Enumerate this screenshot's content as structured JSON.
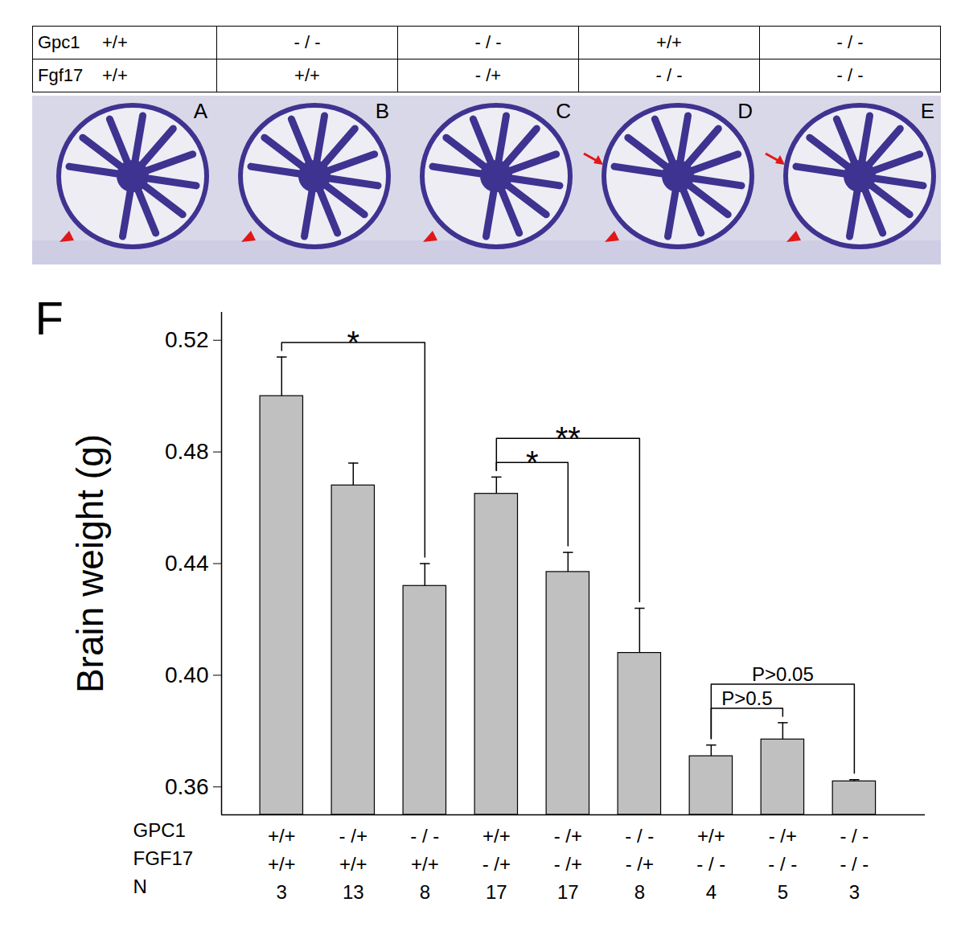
{
  "figure_panels": {
    "genotype_rows": [
      "Gpc1",
      "Fgf17"
    ],
    "panels": [
      {
        "label": "A",
        "genotypes": [
          "+/+",
          "+/+"
        ],
        "markers": [
          "arrowhead"
        ]
      },
      {
        "label": "B",
        "genotypes": [
          "- / -",
          "+/+"
        ],
        "markers": [
          "arrowhead"
        ]
      },
      {
        "label": "C",
        "genotypes": [
          "- / -",
          "- /+"
        ],
        "markers": [
          "arrowhead"
        ]
      },
      {
        "label": "D",
        "genotypes": [
          "+/+",
          "- / -"
        ],
        "markers": [
          "arrowhead",
          "arrow"
        ]
      },
      {
        "label": "E",
        "genotypes": [
          "- / -",
          "- / -"
        ],
        "markers": [
          "arrowhead",
          "arrow"
        ]
      }
    ]
  },
  "chart_data": {
    "type": "bar",
    "title": "F",
    "y_label": "Brain weight (g)",
    "row_labels": [
      "GPC1",
      "FGF17",
      "N"
    ],
    "categories": [
      [
        "+/+",
        "+/+",
        3
      ],
      [
        "- /+",
        "+/+",
        13
      ],
      [
        "- / -",
        "+/+",
        8
      ],
      [
        "+/+",
        "- /+",
        17
      ],
      [
        "- /+",
        "- /+",
        17
      ],
      [
        "- / -",
        "- /+",
        8
      ],
      [
        "+/+",
        "- / -",
        4
      ],
      [
        "- /+",
        "- / -",
        5
      ],
      [
        "- / -",
        "- / -",
        3
      ]
    ],
    "values": [
      0.5,
      0.468,
      0.432,
      0.465,
      0.437,
      0.408,
      0.371,
      0.377,
      0.362
    ],
    "error": [
      0.014,
      0.008,
      0.008,
      0.006,
      0.007,
      0.016,
      0.004,
      0.006,
      0.0006
    ],
    "color": "#c0c0c0",
    "ylim": [
      0.35,
      0.53
    ],
    "yticks": [
      0.36,
      {
        "value": 0.4,
        "label": "0.40"
      },
      0.44,
      0.48,
      0.52
    ],
    "annotations": [
      {
        "from": 0,
        "to": 2,
        "text": "*"
      },
      {
        "from": 3,
        "to": 4,
        "text": "*"
      },
      {
        "from": 3,
        "to": 5,
        "text": "**"
      },
      {
        "from": 6,
        "to": 7,
        "text": "P>0.5"
      },
      {
        "from": 6,
        "to": 8,
        "text": "P>0.05"
      }
    ]
  }
}
